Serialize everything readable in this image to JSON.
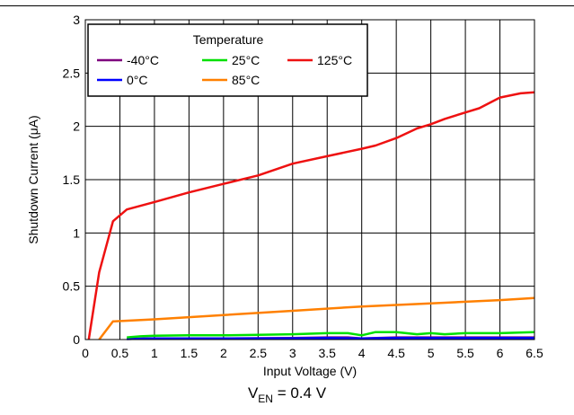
{
  "chart_data": {
    "type": "line",
    "xlabel": "Input Voltage (V)",
    "ylabel": "Shutdown Current (μA)",
    "xlim": [
      0,
      6.5
    ],
    "ylim": [
      0,
      3
    ],
    "xticks": [
      "0",
      "0.5",
      "1",
      "1.5",
      "2",
      "2.5",
      "3",
      "3.5",
      "4",
      "4.5",
      "5",
      "5.5",
      "6",
      "6.5"
    ],
    "yticks": [
      "0",
      "0.5",
      "1",
      "1.5",
      "2",
      "2.5",
      "3"
    ],
    "grid": true,
    "legend": {
      "title": "Temperature",
      "position": "top-left"
    },
    "series": [
      {
        "name": "-40°C",
        "color": "#7f007f",
        "x": [
          0.6,
          1,
          2,
          3,
          3.5,
          3.8,
          4,
          4.5,
          5,
          5.5,
          6,
          6.5
        ],
        "y": [
          0.005,
          0.01,
          0.01,
          0.015,
          0.02,
          0.02,
          0.01,
          0.02,
          0.02,
          0.02,
          0.02,
          0.02
        ]
      },
      {
        "name": "0°C",
        "color": "#0000ff",
        "x": [
          0.6,
          1,
          2,
          3,
          3.5,
          4,
          4.5,
          5,
          5.5,
          6,
          6.5
        ],
        "y": [
          0.005,
          0.01,
          0.01,
          0.012,
          0.015,
          0.01,
          0.015,
          0.015,
          0.015,
          0.015,
          0.015
        ]
      },
      {
        "name": "25°C",
        "color": "#00e000",
        "x": [
          0.6,
          0.8,
          1,
          1.5,
          2,
          2.5,
          3,
          3.5,
          3.8,
          4,
          4.2,
          4.5,
          4.8,
          5,
          5.2,
          5.5,
          6,
          6.5
        ],
        "y": [
          0.02,
          0.03,
          0.035,
          0.04,
          0.04,
          0.045,
          0.05,
          0.06,
          0.06,
          0.04,
          0.07,
          0.07,
          0.05,
          0.06,
          0.05,
          0.06,
          0.06,
          0.07
        ]
      },
      {
        "name": "85°C",
        "color": "#ff8000",
        "x": [
          0.2,
          0.4,
          1,
          2,
          3,
          4,
          5,
          6,
          6.5
        ],
        "y": [
          0,
          0.17,
          0.19,
          0.23,
          0.27,
          0.31,
          0.34,
          0.37,
          0.39
        ]
      },
      {
        "name": "125°C",
        "color": "#ee1111",
        "x": [
          0.05,
          0.2,
          0.4,
          0.6,
          1,
          1.5,
          2,
          2.5,
          3,
          3.5,
          4,
          4.2,
          4.5,
          4.8,
          5,
          5.2,
          5.5,
          5.7,
          6,
          6.3,
          6.5
        ],
        "y": [
          0,
          0.63,
          1.11,
          1.22,
          1.29,
          1.38,
          1.46,
          1.54,
          1.65,
          1.72,
          1.79,
          1.82,
          1.89,
          1.98,
          2.02,
          2.07,
          2.13,
          2.17,
          2.27,
          2.31,
          2.32
        ]
      }
    ]
  },
  "caption": {
    "main": "V",
    "sub": "EN",
    "rest": " = 0.4 V"
  }
}
